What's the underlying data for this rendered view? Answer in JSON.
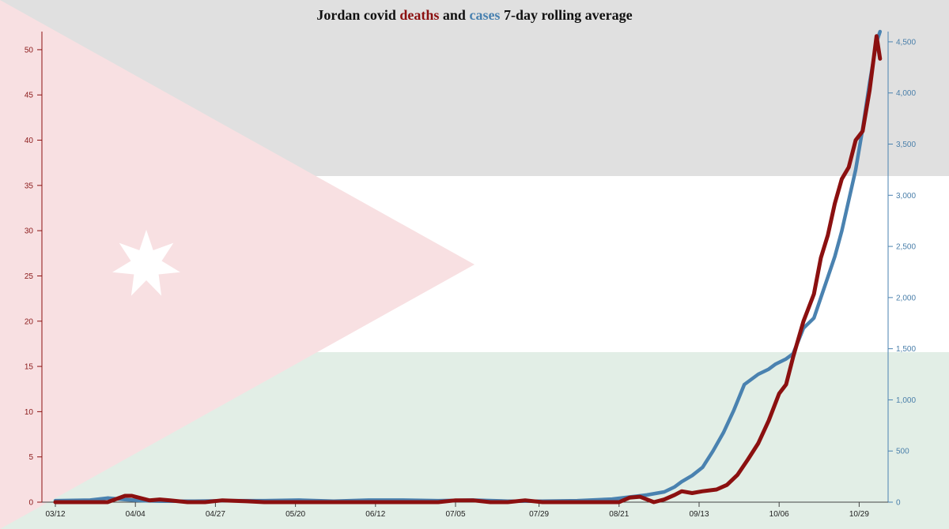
{
  "title": {
    "part1": "Jordan covid ",
    "deaths_word": "deaths",
    "part2": " and ",
    "cases_word": "cases",
    "part3": " 7-day rolling average"
  },
  "colors": {
    "deaths": "#8b1010",
    "cases": "#4a82b0",
    "flag_black": "#e0e0e0",
    "flag_white": "#ffffff",
    "flag_green": "#e2eee6",
    "flag_red": "#f8e0e2",
    "star": "#ffffff"
  },
  "chart_data": {
    "type": "line",
    "title": "Jordan covid deaths and cases 7-day rolling average",
    "x_tick_labels": [
      "03/12",
      "04/04",
      "04/27",
      "05/20",
      "06/12",
      "07/05",
      "07/29",
      "08/21",
      "09/13",
      "10/06",
      "10/29"
    ],
    "x_ticks_day": [
      0,
      23,
      46,
      69,
      92,
      115,
      139,
      162,
      185,
      208,
      231
    ],
    "x_start": "2020-03-12",
    "x_end": "2020-11-06",
    "left_axis": {
      "series": "deaths",
      "ylim": [
        0,
        52
      ],
      "ticks": [
        0,
        5,
        10,
        15,
        20,
        25,
        30,
        35,
        40,
        45,
        50
      ]
    },
    "right_axis": {
      "series": "cases",
      "ylim": [
        0,
        4600
      ],
      "ticks": [
        0,
        500,
        1000,
        1500,
        2000,
        2500,
        3000,
        3500,
        4000,
        4500
      ],
      "tick_labels": [
        "0",
        "500",
        "1,000",
        "1,500",
        "2,000",
        "2,500",
        "3,000",
        "3,500",
        "4,000",
        "4,500"
      ]
    },
    "grid": false,
    "series": [
      {
        "name": "deaths",
        "axis": "left",
        "day": [
          0,
          15,
          20,
          22,
          27,
          30,
          33,
          38,
          43,
          48,
          55,
          60,
          70,
          80,
          90,
          100,
          110,
          115,
          120,
          125,
          130,
          135,
          140,
          150,
          160,
          162,
          165,
          168,
          172,
          175,
          178,
          180,
          183,
          186,
          190,
          193,
          196,
          199,
          202,
          205,
          208,
          210,
          212,
          215,
          218,
          220,
          222,
          224,
          226,
          228,
          230,
          232,
          234,
          236,
          237
        ],
        "values": [
          0,
          0,
          0.7,
          0.7,
          0.2,
          0.3,
          0.2,
          0,
          0,
          0.2,
          0.1,
          0,
          0,
          0,
          0,
          0,
          0,
          0.2,
          0.2,
          0,
          0,
          0.2,
          0,
          0,
          0,
          0,
          0.5,
          0.6,
          0,
          0.3,
          0.8,
          1.2,
          1,
          1.2,
          1.4,
          1.9,
          3,
          4.7,
          6.5,
          9,
          12,
          13,
          16,
          20,
          23,
          27,
          29.5,
          33,
          35.7,
          37,
          40,
          41,
          45.5,
          51.5,
          49
        ]
      },
      {
        "name": "cases",
        "axis": "right",
        "day": [
          0,
          10,
          15,
          20,
          25,
          30,
          40,
          50,
          60,
          70,
          80,
          90,
          100,
          110,
          120,
          130,
          140,
          150,
          160,
          165,
          170,
          175,
          178,
          180,
          183,
          186,
          189,
          192,
          195,
          198,
          200,
          202,
          205,
          207,
          210,
          212,
          215,
          218,
          220,
          222,
          224,
          226,
          228,
          230,
          232,
          234,
          236,
          237
        ],
        "values": [
          15,
          20,
          40,
          25,
          15,
          10,
          10,
          15,
          15,
          20,
          10,
          20,
          20,
          15,
          20,
          10,
          10,
          15,
          30,
          50,
          70,
          100,
          150,
          200,
          260,
          340,
          500,
          680,
          900,
          1150,
          1200,
          1250,
          1300,
          1350,
          1400,
          1450,
          1700,
          1800,
          2000,
          2200,
          2400,
          2650,
          2950,
          3250,
          3650,
          4100,
          4500,
          4600
        ]
      }
    ]
  }
}
